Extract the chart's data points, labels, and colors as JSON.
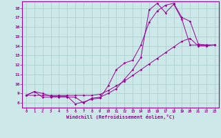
{
  "xlabel": "Windchill (Refroidissement éolien,°C)",
  "bg_color": "#cce8e8",
  "grid_color": "#aacccc",
  "line_color": "#990099",
  "xlim": [
    -0.5,
    23.5
  ],
  "ylim": [
    7.5,
    18.7
  ],
  "xticks": [
    0,
    1,
    2,
    3,
    4,
    5,
    6,
    7,
    8,
    9,
    10,
    11,
    12,
    13,
    14,
    15,
    16,
    17,
    18,
    19,
    20,
    21,
    22,
    23
  ],
  "yticks": [
    8,
    9,
    10,
    11,
    12,
    13,
    14,
    15,
    16,
    17,
    18
  ],
  "series1_x": [
    0,
    1,
    2,
    3,
    4,
    5,
    6,
    7,
    8,
    9,
    10,
    11,
    12,
    13,
    14,
    15,
    16,
    17,
    18,
    19,
    20,
    21,
    22,
    23
  ],
  "series1_y": [
    8.8,
    9.2,
    9.0,
    8.7,
    8.7,
    8.7,
    7.9,
    8.1,
    8.4,
    8.5,
    9.8,
    11.5,
    12.2,
    12.5,
    14.1,
    16.5,
    17.7,
    18.3,
    18.5,
    17.0,
    16.6,
    14.2,
    14.1,
    14.1
  ],
  "series2_x": [
    0,
    1,
    2,
    3,
    4,
    5,
    6,
    7,
    8,
    9,
    10,
    11,
    12,
    13,
    14,
    15,
    16,
    17,
    18,
    19,
    20,
    21,
    22,
    23
  ],
  "series2_y": [
    8.8,
    9.2,
    8.6,
    8.6,
    8.6,
    8.6,
    8.6,
    8.0,
    8.5,
    8.6,
    9.0,
    9.5,
    10.5,
    11.5,
    12.8,
    17.8,
    18.5,
    17.5,
    18.4,
    16.8,
    14.1,
    14.1,
    14.1,
    14.1
  ],
  "series3_x": [
    0,
    1,
    2,
    3,
    4,
    5,
    6,
    7,
    8,
    9,
    10,
    11,
    12,
    13,
    14,
    15,
    16,
    17,
    18,
    19,
    20,
    21,
    22,
    23
  ],
  "series3_y": [
    8.8,
    8.8,
    8.8,
    8.8,
    8.8,
    8.8,
    8.8,
    8.8,
    8.8,
    8.9,
    9.3,
    9.8,
    10.3,
    10.9,
    11.5,
    12.1,
    12.7,
    13.3,
    13.9,
    14.5,
    14.8,
    14.0,
    14.0,
    14.1
  ]
}
